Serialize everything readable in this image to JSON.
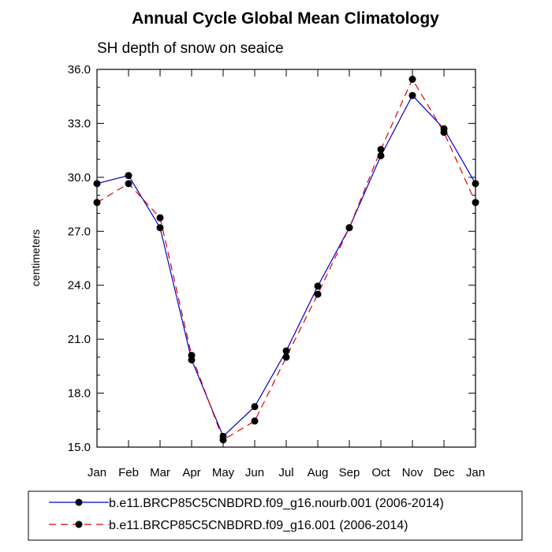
{
  "chart_data": {
    "type": "line",
    "title": "Annual Cycle Global Mean Climatology",
    "subtitle": "SH depth of snow on seaice",
    "xlabel": "",
    "ylabel": "centimeters",
    "categories": [
      "Jan",
      "Feb",
      "Mar",
      "Apr",
      "May",
      "Jun",
      "Jul",
      "Aug",
      "Sep",
      "Oct",
      "Nov",
      "Dec",
      "Jan"
    ],
    "ylim": [
      15.0,
      36.0
    ],
    "yticks": [
      "15.0",
      "18.0",
      "21.0",
      "24.0",
      "27.0",
      "30.0",
      "33.0",
      "36.0"
    ],
    "grid": false,
    "legend_position": "bottom",
    "series": [
      {
        "name": "b.e11.BRCP85C5CNBDRD.f09_g16.nourb.001 (2006-2014)",
        "color": "#0000cc",
        "line_style": "solid",
        "values": [
          29.65,
          30.1,
          27.2,
          19.85,
          15.6,
          17.25,
          20.35,
          23.95,
          27.2,
          31.2,
          34.55,
          32.7,
          29.65
        ]
      },
      {
        "name": "b.e11.BRCP85C5CNBDRD.f09_g16.001 (2006-2014)",
        "color": "#dd0000",
        "line_style": "dashed",
        "values": [
          28.6,
          29.65,
          27.75,
          20.1,
          15.4,
          16.45,
          20.0,
          23.5,
          27.2,
          31.55,
          35.45,
          32.5,
          28.6
        ]
      }
    ]
  }
}
